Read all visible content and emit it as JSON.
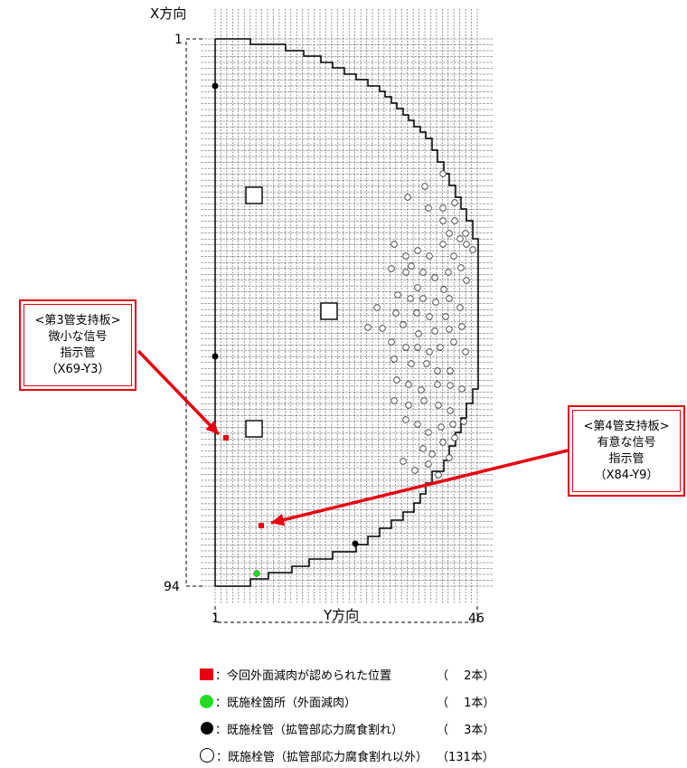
{
  "axes": {
    "x_title": "X方向",
    "x_start": "1",
    "x_end": "94",
    "y_title": "Y方向",
    "y_start": "1",
    "y_end": "46"
  },
  "callouts": {
    "left": {
      "line1": "<第3管支持板>",
      "line2": "微小な信号",
      "line3": "指示管",
      "line4": "（X69-Y3）"
    },
    "right": {
      "line1": "<第4管支持板>",
      "line2": "有意な信号",
      "line3": "指示管",
      "line4": "（X84-Y9）"
    }
  },
  "legend": {
    "red": {
      "label": "：今回外面減肉が認められた位置",
      "count": "（　 2本）"
    },
    "green": {
      "label": "：既施栓箇所（外面減肉）",
      "count": "（　 1本）"
    },
    "black": {
      "label": "：既施栓管（拡管部応力腐食割れ）",
      "count": "（　 3本）"
    },
    "open": {
      "label": "：既施栓管（拡管部応力腐食割れ以外）",
      "count": "（131本）"
    }
  },
  "colors": {
    "accent_red": "#e60012",
    "green": "#22dd22",
    "grid": "#555555"
  }
}
